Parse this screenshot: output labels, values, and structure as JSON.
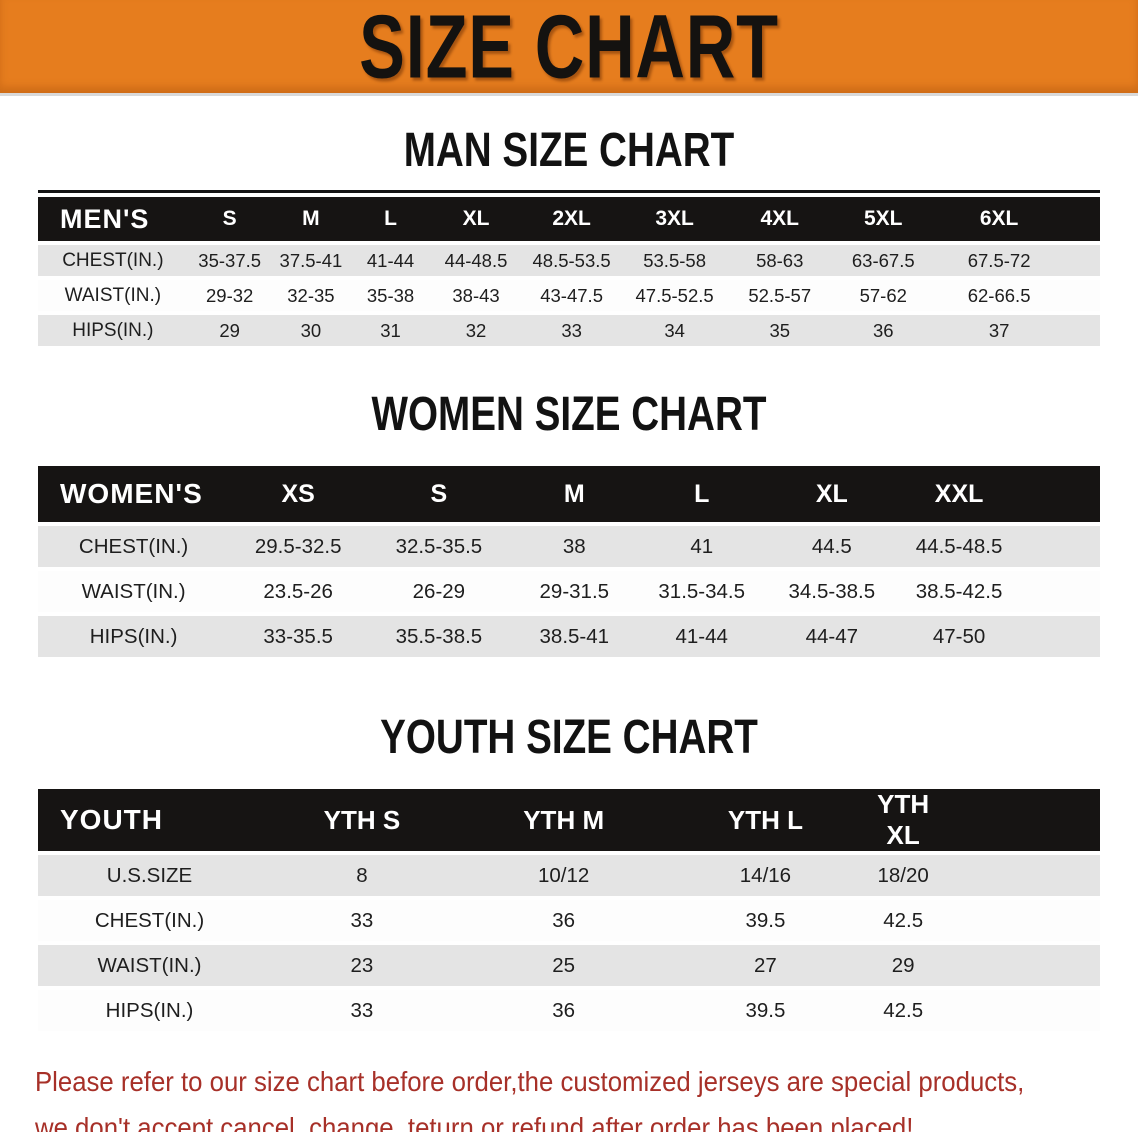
{
  "banner": {
    "title": "SIZE CHART"
  },
  "colors": {
    "banner_bg": "#e67d1e",
    "header_bar_bg": "#161413",
    "row_gray": "#e4e4e4",
    "row_white": "#fdfdfd",
    "disclaimer_red": "#a73028"
  },
  "sections": [
    {
      "id": "men",
      "heading": "MAN SIZE CHART",
      "table": {
        "header": [
          "MEN'S",
          "S",
          "M",
          "L",
          "XL",
          "2XL",
          "3XL",
          "4XL",
          "5XL",
          "6XL"
        ],
        "rows": [
          [
            "CHEST(IN.)",
            "35-37.5",
            "37.5-41",
            "41-44",
            "44-48.5",
            "48.5-53.5",
            "53.5-58",
            "58-63",
            "63-67.5",
            "67.5-72"
          ],
          [
            "WAIST(IN.)",
            "29-32",
            "32-35",
            "35-38",
            "38-43",
            "43-47.5",
            "47.5-52.5",
            "52.5-57",
            "57-62",
            "62-66.5"
          ],
          [
            "HIPS(IN.)",
            "29",
            "30",
            "31",
            "32",
            "33",
            "34",
            "35",
            "36",
            "37"
          ]
        ]
      }
    },
    {
      "id": "women",
      "heading": "WOMEN SIZE CHART",
      "table": {
        "header": [
          "WOMEN'S",
          "XS",
          "S",
          "M",
          "L",
          "XL",
          "XXL"
        ],
        "rows": [
          [
            "CHEST(IN.)",
            "29.5-32.5",
            "32.5-35.5",
            "38",
            "41",
            "44.5",
            "44.5-48.5"
          ],
          [
            "WAIST(IN.)",
            "23.5-26",
            "26-29",
            "29-31.5",
            "31.5-34.5",
            "34.5-38.5",
            "38.5-42.5"
          ],
          [
            "HIPS(IN.)",
            "33-35.5",
            "35.5-38.5",
            "38.5-41",
            "41-44",
            "44-47",
            "47-50"
          ]
        ]
      }
    },
    {
      "id": "youth",
      "heading": "YOUTH SIZE CHART",
      "table": {
        "header": [
          "YOUTH",
          "YTH S",
          "YTH M",
          "YTH L",
          "YTH XL"
        ],
        "rows": [
          [
            "U.S.SIZE",
            "8",
            "10/12",
            "14/16",
            "18/20"
          ],
          [
            "CHEST(IN.)",
            "33",
            "36",
            "39.5",
            "42.5"
          ],
          [
            "WAIST(IN.)",
            "23",
            "25",
            "27",
            "29"
          ],
          [
            "HIPS(IN.)",
            "33",
            "36",
            "39.5",
            "42.5"
          ]
        ]
      }
    }
  ],
  "disclaimer": {
    "line1": "Please refer to our size chart before order,the customized jerseys are special products,",
    "line2": "we don't accept cancel, change, teturn or refund after order has been placed!"
  }
}
